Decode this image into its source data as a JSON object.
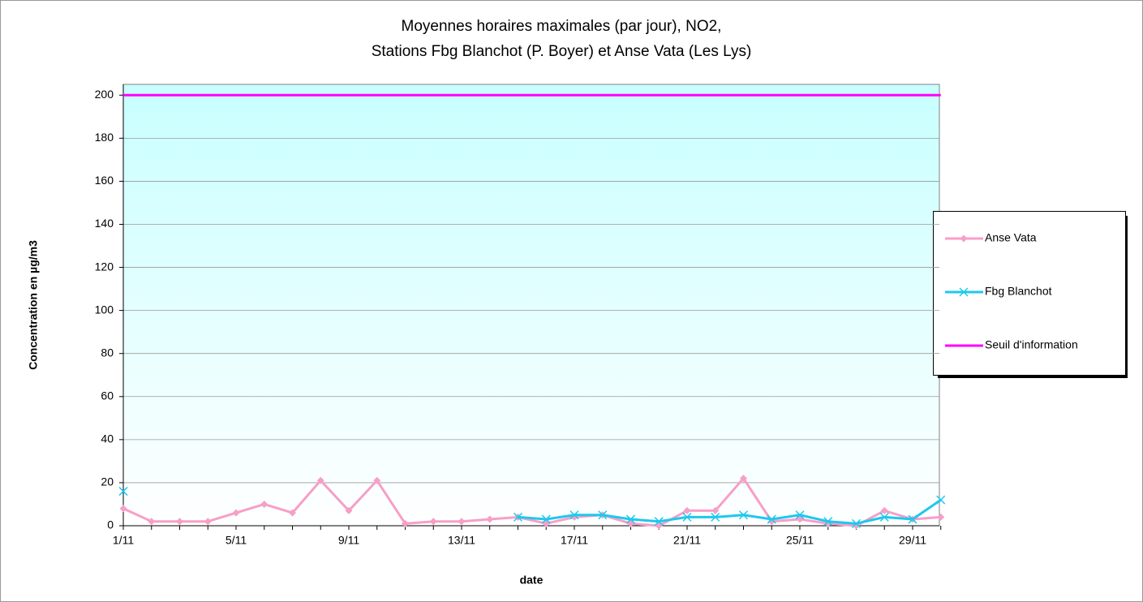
{
  "chart_data": {
    "type": "line",
    "title": [
      "Moyennes horaires maximales (par jour), NO2,",
      "Stations Fbg Blanchot (P. Boyer) et Anse Vata (Les Lys)"
    ],
    "x_label": "date",
    "y_label": "Concentration en µg/m3",
    "categories": [
      "1/11",
      null,
      null,
      null,
      "5/11",
      null,
      null,
      null,
      "9/11",
      null,
      null,
      null,
      "13/11",
      null,
      null,
      null,
      "17/11",
      null,
      null,
      null,
      "21/11",
      null,
      null,
      null,
      "25/11",
      null,
      null,
      null,
      "29/11",
      null
    ],
    "series": [
      {
        "name": "Anse Vata",
        "color": "#f79fc8",
        "marker": "diamond",
        "values": [
          8,
          2,
          2,
          2,
          6,
          10,
          6,
          21,
          7,
          21,
          1,
          2,
          2,
          3,
          4,
          1,
          4,
          5,
          1,
          0,
          7,
          7,
          22,
          2,
          3,
          1,
          0,
          7,
          3,
          4
        ]
      },
      {
        "name": "Fbg Blanchot",
        "color": "#1ec8ee",
        "marker": "x",
        "values": [
          16,
          null,
          null,
          null,
          null,
          null,
          null,
          null,
          null,
          null,
          null,
          null,
          null,
          null,
          4,
          3,
          5,
          5,
          3,
          2,
          4,
          4,
          5,
          3,
          5,
          2,
          1,
          4,
          3,
          12
        ]
      },
      {
        "name": "Seuil d'information",
        "color": "#ff00ff",
        "marker": "none",
        "values": [
          200,
          200,
          200,
          200,
          200,
          200,
          200,
          200,
          200,
          200,
          200,
          200,
          200,
          200,
          200,
          200,
          200,
          200,
          200,
          200,
          200,
          200,
          200,
          200,
          200,
          200,
          200,
          200,
          200,
          200
        ]
      }
    ],
    "ylim": [
      0,
      205
    ],
    "yticks": [
      0,
      20,
      40,
      60,
      80,
      100,
      120,
      140,
      160,
      180,
      200
    ],
    "grid": true,
    "legend": "right"
  }
}
